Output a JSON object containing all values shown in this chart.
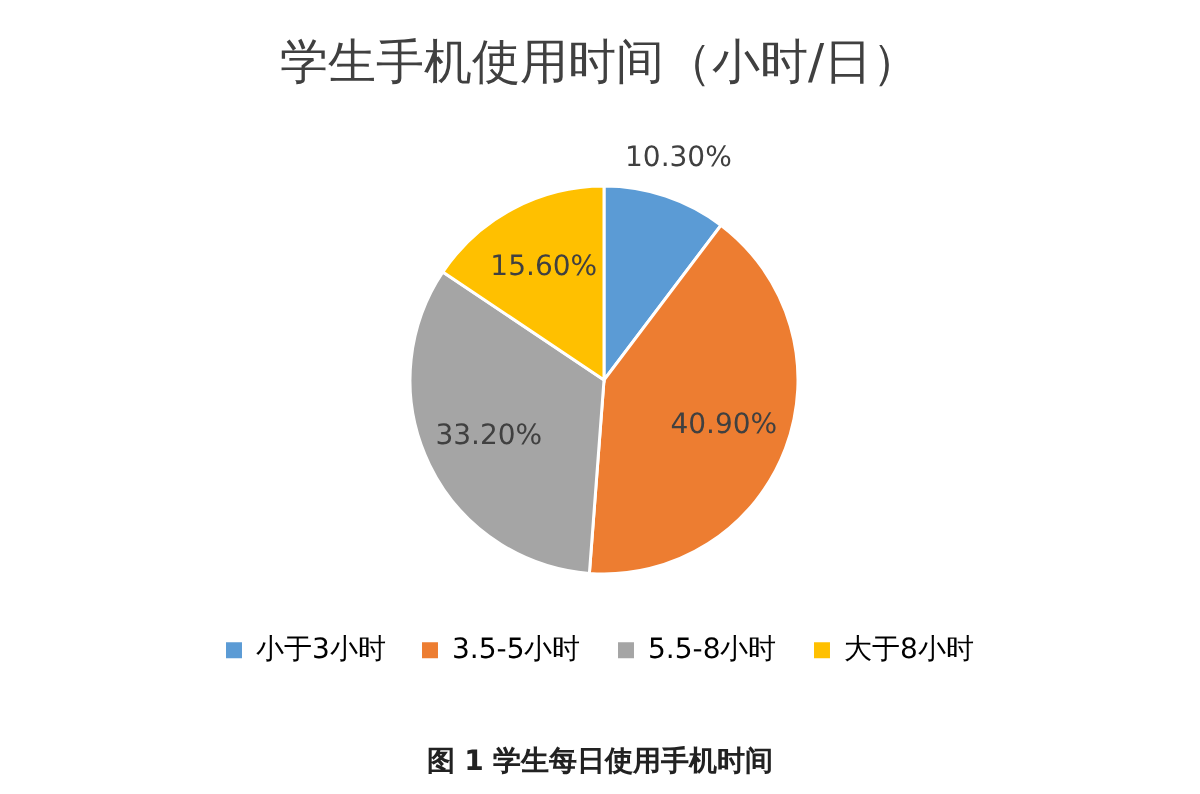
{
  "chart_data": {
    "type": "pie",
    "title": "学生手机使用时间（小时/日）",
    "categories": [
      "小于3小时",
      "3.5-5小时",
      "5.5-8小时",
      "大于8小时"
    ],
    "values": [
      10.3,
      40.9,
      33.2,
      15.6
    ],
    "value_labels": [
      "10.30%",
      "40.90%",
      "33.20%",
      "15.60%"
    ],
    "colors": [
      "#5b9bd5",
      "#ed7d31",
      "#a5a5a5",
      "#ffc000"
    ],
    "legend": "bottom",
    "annotations": [
      "图 1  学生每日使用手机时间"
    ]
  }
}
